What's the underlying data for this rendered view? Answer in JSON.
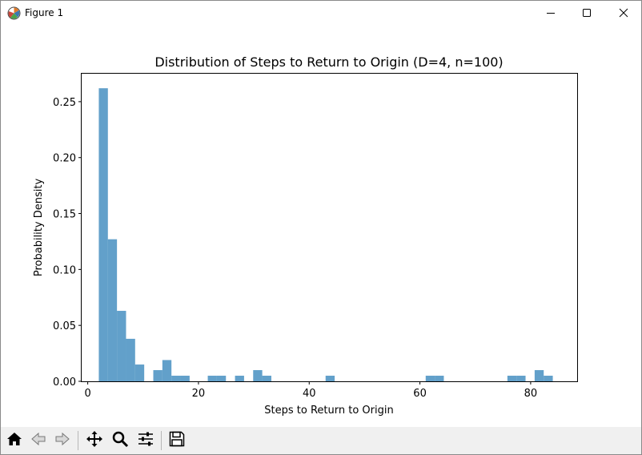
{
  "window": {
    "title": "Figure 1",
    "icons": {
      "app": "matplotlib-icon",
      "minimize": "minimize-icon",
      "maximize": "maximize-icon",
      "close": "close-icon"
    }
  },
  "toolbar": {
    "buttons": [
      {
        "name": "home-button",
        "icon": "home-icon"
      },
      {
        "name": "back-button",
        "icon": "back-arrow-icon"
      },
      {
        "name": "forward-button",
        "icon": "forward-arrow-icon"
      },
      {
        "name": "pan-button",
        "icon": "move-icon"
      },
      {
        "name": "zoom-button",
        "icon": "magnifier-icon"
      },
      {
        "name": "configure-subplots-button",
        "icon": "sliders-icon"
      },
      {
        "name": "save-button",
        "icon": "floppy-disk-icon"
      }
    ]
  },
  "chart_data": {
    "type": "bar",
    "title": "Distribution of Steps to Return to Origin (D=4, n=100)",
    "xlabel": "Steps to Return to Origin",
    "ylabel": "Probability Density",
    "xlim": [
      -1.1,
      88.4
    ],
    "ylim": [
      0,
      0.275
    ],
    "xticks": [
      0,
      20,
      40,
      60,
      80
    ],
    "xtick_labels": [
      "0",
      "20",
      "40",
      "60",
      "80"
    ],
    "yticks": [
      0,
      0.05,
      0.1,
      0.15,
      0.2,
      0.25
    ],
    "ytick_labels": [
      "0.00",
      "0.05",
      "0.10",
      "0.15",
      "0.20",
      "0.25"
    ],
    "bin_width": 1.64,
    "bin_starts": [
      2,
      3.64,
      5.28,
      6.92,
      8.56,
      11.84,
      13.48,
      15.12,
      16.76,
      21.68,
      23.32,
      26.6,
      29.88,
      31.52,
      42.96,
      61.04,
      62.68,
      75.8,
      77.44,
      80.72,
      82.36
    ],
    "values": [
      0.262,
      0.127,
      0.063,
      0.038,
      0.015,
      0.01,
      0.019,
      0.005,
      0.005,
      0.005,
      0.005,
      0.005,
      0.01,
      0.005,
      0.005,
      0.005,
      0.005,
      0.005,
      0.005,
      0.01,
      0.005
    ],
    "bar_color": "#1f77b4",
    "bar_alpha": 0.7,
    "grid": false,
    "legend": "none"
  }
}
